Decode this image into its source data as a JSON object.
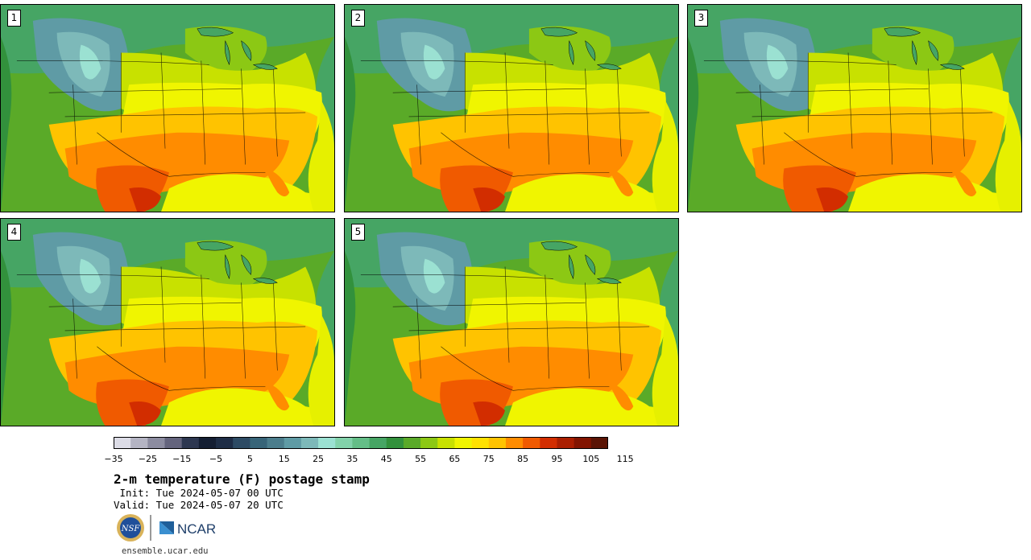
{
  "panels": [
    {
      "label": "1"
    },
    {
      "label": "2"
    },
    {
      "label": "3"
    },
    {
      "label": "4"
    },
    {
      "label": "5"
    }
  ],
  "colorbar": {
    "colors": [
      "#dcdce6",
      "#b4b4c3",
      "#8c8ca0",
      "#64647d",
      "#2d3750",
      "#141e32",
      "#1e2d46",
      "#2d4b64",
      "#376478",
      "#4b7d8c",
      "#5f9ba5",
      "#7db9b9",
      "#9be1d2",
      "#82d2aa",
      "#64be87",
      "#46a564",
      "#32913c",
      "#5aaa28",
      "#8cc814",
      "#c8e100",
      "#f0f500",
      "#ffe100",
      "#ffc300",
      "#ff8c00",
      "#f05a00",
      "#d22d00",
      "#aa1e00",
      "#821400",
      "#5a1405"
    ],
    "tick_labels": [
      "−35",
      "−25",
      "−15",
      "−5",
      "5",
      "15",
      "25",
      "35",
      "45",
      "55",
      "65",
      "75",
      "85",
      "95",
      "105",
      "115"
    ]
  },
  "title": "2-m temperature (F) postage stamp",
  "init": " Init: Tue 2024-05-07 00 UTC",
  "valid": "Valid: Tue 2024-05-07 20 UTC",
  "logos": {
    "nsf": "NSF",
    "ncar": "NCAR"
  },
  "url": "ensemble.ucar.edu"
}
